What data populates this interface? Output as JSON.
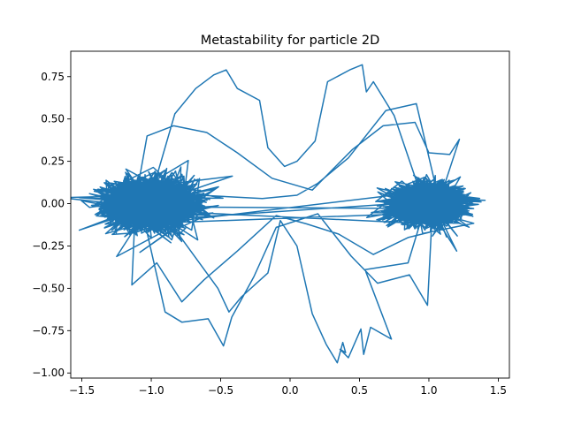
{
  "chart_data": {
    "type": "line",
    "title": "Metastability for particle 2D",
    "xlabel": "",
    "ylabel": "",
    "xlim": [
      -1.58,
      1.58
    ],
    "ylim": [
      -1.03,
      0.9
    ],
    "x_ticks": [
      -1.5,
      -1.0,
      -0.5,
      0.0,
      0.5,
      1.0,
      1.5
    ],
    "x_tick_labels": [
      "−1.5",
      "−1.0",
      "−0.5",
      "0.0",
      "0.5",
      "1.0",
      "1.5"
    ],
    "y_ticks": [
      -1.0,
      -0.75,
      -0.5,
      -0.25,
      0.0,
      0.25,
      0.5,
      0.75
    ],
    "y_tick_labels": [
      "−1.00",
      "−0.75",
      "−0.50",
      "−0.25",
      "0.00",
      "0.25",
      "0.50",
      "0.75"
    ],
    "grid": false,
    "series": [
      {
        "color": "#1f77b4",
        "clusters": [
          {
            "center": [
              -1.0,
              0.0
            ],
            "spread": [
              0.26,
              0.12
            ],
            "count": 1500
          },
          {
            "center": [
              1.0,
              0.0
            ],
            "spread": [
              0.2,
              0.09
            ],
            "count": 1500
          }
        ],
        "excursions": [
          [
            [
              -1.0,
              0.05
            ],
            [
              -0.83,
              0.53
            ],
            [
              -0.68,
              0.68
            ],
            [
              -0.55,
              0.76
            ],
            [
              -0.46,
              0.79
            ],
            [
              -0.38,
              0.68
            ],
            [
              -0.22,
              0.61
            ],
            [
              -0.16,
              0.33
            ],
            [
              -0.04,
              0.22
            ],
            [
              0.05,
              0.25
            ],
            [
              0.18,
              0.37
            ],
            [
              0.27,
              0.72
            ],
            [
              0.43,
              0.79
            ],
            [
              0.52,
              0.82
            ],
            [
              0.55,
              0.66
            ],
            [
              0.6,
              0.72
            ],
            [
              0.75,
              0.52
            ],
            [
              0.92,
              0.11
            ]
          ],
          [
            [
              1.05,
              0.1
            ],
            [
              0.91,
              0.59
            ],
            [
              0.69,
              0.55
            ],
            [
              0.42,
              0.27
            ],
            [
              0.2,
              0.12
            ],
            [
              0.05,
              0.05
            ],
            [
              -0.2,
              0.03
            ],
            [
              -0.65,
              0.05
            ],
            [
              -0.95,
              0.02
            ]
          ],
          [
            [
              -0.92,
              -0.05
            ],
            [
              -0.52,
              -0.5
            ],
            [
              -0.44,
              -0.64
            ],
            [
              -0.35,
              -0.55
            ],
            [
              -0.16,
              -0.41
            ],
            [
              -0.07,
              -0.1
            ],
            [
              0.05,
              -0.25
            ],
            [
              0.16,
              -0.65
            ],
            [
              0.26,
              -0.83
            ],
            [
              0.34,
              -0.94
            ],
            [
              0.38,
              -0.82
            ],
            [
              0.4,
              -0.88
            ],
            [
              0.36,
              -0.86
            ],
            [
              0.42,
              -0.91
            ],
            [
              0.51,
              -0.74
            ],
            [
              0.53,
              -0.89
            ],
            [
              0.58,
              -0.73
            ],
            [
              0.73,
              -0.8
            ],
            [
              0.54,
              -0.39
            ],
            [
              0.85,
              -0.35
            ],
            [
              0.95,
              -0.08
            ]
          ],
          [
            [
              -1.05,
              -0.1
            ],
            [
              -0.9,
              -0.64
            ],
            [
              -0.78,
              -0.7
            ],
            [
              -0.59,
              -0.68
            ],
            [
              -0.48,
              -0.84
            ],
            [
              -0.42,
              -0.67
            ],
            [
              -0.26,
              -0.43
            ],
            [
              -0.1,
              -0.14
            ],
            [
              0.2,
              -0.06
            ],
            [
              0.44,
              -0.31
            ],
            [
              0.63,
              -0.47
            ],
            [
              0.86,
              -0.42
            ],
            [
              0.99,
              -0.6
            ],
            [
              1.02,
              -0.12
            ]
          ],
          [
            [
              -1.1,
              0.08
            ],
            [
              -1.03,
              0.4
            ],
            [
              -0.84,
              0.46
            ],
            [
              -0.6,
              0.42
            ],
            [
              -0.38,
              0.3
            ],
            [
              -0.13,
              0.15
            ],
            [
              0.16,
              0.08
            ],
            [
              0.45,
              0.32
            ],
            [
              0.67,
              0.46
            ],
            [
              0.9,
              0.48
            ],
            [
              1.0,
              0.3
            ],
            [
              1.15,
              0.29
            ],
            [
              1.22,
              0.38
            ],
            [
              1.08,
              0.03
            ]
          ],
          [
            [
              -1.12,
              -0.12
            ],
            [
              -1.14,
              -0.48
            ],
            [
              -0.96,
              -0.35
            ],
            [
              -0.78,
              -0.58
            ],
            [
              -0.62,
              -0.45
            ],
            [
              -0.38,
              -0.28
            ],
            [
              -0.1,
              -0.07
            ],
            [
              0.12,
              -0.12
            ],
            [
              0.35,
              -0.18
            ],
            [
              0.6,
              -0.3
            ],
            [
              0.85,
              -0.2
            ],
            [
              1.1,
              -0.15
            ],
            [
              1.2,
              -0.28
            ],
            [
              1.05,
              -0.03
            ]
          ]
        ]
      }
    ]
  }
}
